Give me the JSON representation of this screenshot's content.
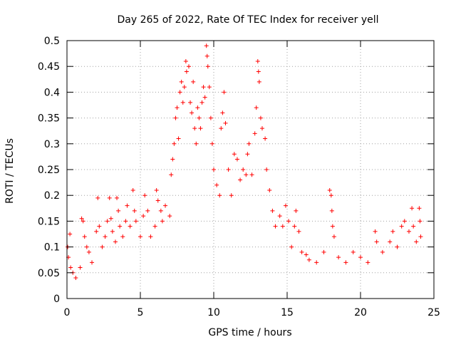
{
  "chart_data": {
    "type": "scatter",
    "title": "Day 265 of 2022, Rate Of TEC Index for receiver yell",
    "xlabel": "GPS time / hours",
    "ylabel": "ROTI / TECUs",
    "xlim": [
      0,
      25
    ],
    "ylim": [
      0,
      0.5
    ],
    "x_ticks": [
      0,
      5,
      10,
      15,
      20,
      25
    ],
    "y_ticks": [
      0,
      0.05,
      0.1,
      0.15,
      0.2,
      0.25,
      0.3,
      0.35,
      0.4,
      0.45,
      0.5
    ],
    "x_tick_labels": [
      "0",
      "5",
      "10",
      "15",
      "20",
      "25"
    ],
    "y_tick_labels": [
      "0",
      "0.05",
      "0.1",
      "0.15",
      "0.2",
      "0.25",
      "0.3",
      "0.35",
      "0.4",
      "0.45",
      "0.5"
    ],
    "grid": true,
    "marker": "+",
    "color": "#ff0000",
    "series": [
      {
        "name": "",
        "points": [
          [
            0.05,
            0.1
          ],
          [
            0.1,
            0.08
          ],
          [
            0.2,
            0.125
          ],
          [
            0.25,
            0.06
          ],
          [
            0.4,
            0.05
          ],
          [
            0.6,
            0.04
          ],
          [
            0.9,
            0.06
          ],
          [
            1.0,
            0.155
          ],
          [
            1.1,
            0.15
          ],
          [
            1.2,
            0.12
          ],
          [
            1.35,
            0.1
          ],
          [
            1.5,
            0.09
          ],
          [
            1.7,
            0.07
          ],
          [
            2.0,
            0.13
          ],
          [
            2.1,
            0.195
          ],
          [
            2.2,
            0.14
          ],
          [
            2.4,
            0.1
          ],
          [
            2.6,
            0.12
          ],
          [
            2.75,
            0.15
          ],
          [
            2.9,
            0.195
          ],
          [
            3.0,
            0.155
          ],
          [
            3.1,
            0.13
          ],
          [
            3.3,
            0.11
          ],
          [
            3.4,
            0.195
          ],
          [
            3.5,
            0.17
          ],
          [
            3.6,
            0.14
          ],
          [
            3.8,
            0.12
          ],
          [
            4.0,
            0.15
          ],
          [
            4.1,
            0.18
          ],
          [
            4.3,
            0.14
          ],
          [
            4.5,
            0.21
          ],
          [
            4.6,
            0.17
          ],
          [
            4.7,
            0.15
          ],
          [
            5.0,
            0.12
          ],
          [
            5.2,
            0.16
          ],
          [
            5.3,
            0.2
          ],
          [
            5.5,
            0.17
          ],
          [
            5.7,
            0.12
          ],
          [
            6.0,
            0.14
          ],
          [
            6.1,
            0.21
          ],
          [
            6.2,
            0.19
          ],
          [
            6.4,
            0.17
          ],
          [
            6.5,
            0.15
          ],
          [
            6.7,
            0.18
          ],
          [
            7.0,
            0.16
          ],
          [
            7.1,
            0.24
          ],
          [
            7.2,
            0.27
          ],
          [
            7.3,
            0.3
          ],
          [
            7.4,
            0.35
          ],
          [
            7.5,
            0.37
          ],
          [
            7.6,
            0.31
          ],
          [
            7.7,
            0.4
          ],
          [
            7.8,
            0.42
          ],
          [
            7.9,
            0.38
          ],
          [
            8.0,
            0.41
          ],
          [
            8.1,
            0.46
          ],
          [
            8.15,
            0.44
          ],
          [
            8.3,
            0.45
          ],
          [
            8.4,
            0.38
          ],
          [
            8.5,
            0.36
          ],
          [
            8.6,
            0.42
          ],
          [
            8.7,
            0.33
          ],
          [
            8.8,
            0.3
          ],
          [
            8.9,
            0.37
          ],
          [
            9.0,
            0.35
          ],
          [
            9.1,
            0.33
          ],
          [
            9.2,
            0.38
          ],
          [
            9.3,
            0.41
          ],
          [
            9.4,
            0.39
          ],
          [
            9.5,
            0.49
          ],
          [
            9.55,
            0.47
          ],
          [
            9.6,
            0.45
          ],
          [
            9.7,
            0.41
          ],
          [
            9.8,
            0.35
          ],
          [
            9.9,
            0.3
          ],
          [
            10.0,
            0.25
          ],
          [
            10.2,
            0.22
          ],
          [
            10.4,
            0.2
          ],
          [
            10.5,
            0.33
          ],
          [
            10.6,
            0.36
          ],
          [
            10.7,
            0.4
          ],
          [
            10.8,
            0.34
          ],
          [
            11.0,
            0.25
          ],
          [
            11.2,
            0.2
          ],
          [
            11.4,
            0.28
          ],
          [
            11.6,
            0.27
          ],
          [
            11.8,
            0.23
          ],
          [
            12.0,
            0.25
          ],
          [
            12.2,
            0.24
          ],
          [
            12.3,
            0.28
          ],
          [
            12.4,
            0.3
          ],
          [
            12.6,
            0.24
          ],
          [
            12.8,
            0.32
          ],
          [
            12.9,
            0.37
          ],
          [
            13.0,
            0.46
          ],
          [
            13.05,
            0.44
          ],
          [
            13.1,
            0.42
          ],
          [
            13.2,
            0.35
          ],
          [
            13.3,
            0.33
          ],
          [
            13.5,
            0.31
          ],
          [
            13.6,
            0.25
          ],
          [
            13.8,
            0.21
          ],
          [
            14.0,
            0.17
          ],
          [
            14.2,
            0.14
          ],
          [
            14.5,
            0.16
          ],
          [
            14.7,
            0.14
          ],
          [
            14.9,
            0.18
          ],
          [
            15.1,
            0.15
          ],
          [
            15.3,
            0.1
          ],
          [
            15.5,
            0.14
          ],
          [
            15.6,
            0.17
          ],
          [
            15.8,
            0.13
          ],
          [
            16.0,
            0.09
          ],
          [
            16.3,
            0.085
          ],
          [
            16.5,
            0.075
          ],
          [
            17.0,
            0.07
          ],
          [
            17.5,
            0.09
          ],
          [
            17.9,
            0.21
          ],
          [
            18.0,
            0.2
          ],
          [
            18.05,
            0.17
          ],
          [
            18.1,
            0.14
          ],
          [
            18.2,
            0.12
          ],
          [
            18.5,
            0.08
          ],
          [
            19.0,
            0.07
          ],
          [
            19.5,
            0.09
          ],
          [
            20.0,
            0.08
          ],
          [
            20.5,
            0.07
          ],
          [
            21.0,
            0.13
          ],
          [
            21.1,
            0.11
          ],
          [
            21.5,
            0.09
          ],
          [
            22.0,
            0.11
          ],
          [
            22.2,
            0.13
          ],
          [
            22.5,
            0.1
          ],
          [
            22.8,
            0.14
          ],
          [
            23.0,
            0.15
          ],
          [
            23.3,
            0.13
          ],
          [
            23.5,
            0.175
          ],
          [
            23.6,
            0.14
          ],
          [
            23.8,
            0.11
          ],
          [
            24.0,
            0.175
          ],
          [
            24.05,
            0.15
          ],
          [
            24.1,
            0.12
          ]
        ]
      }
    ]
  }
}
